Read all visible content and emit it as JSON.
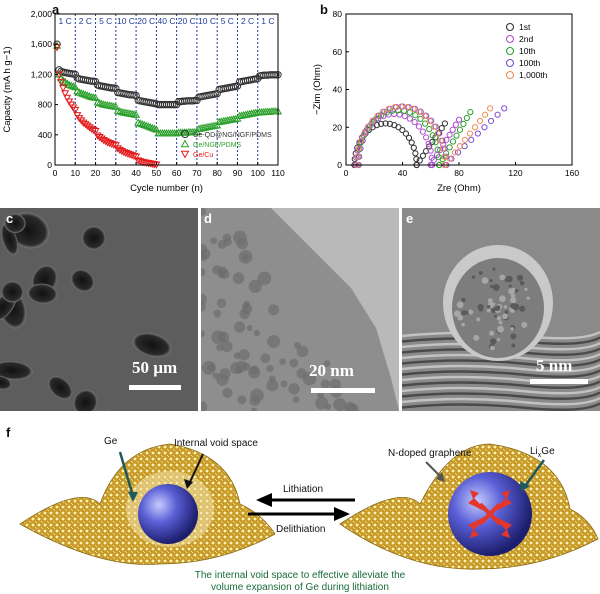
{
  "panels": {
    "a": "a",
    "b": "b",
    "c": "c",
    "d": "d",
    "e": "e",
    "f": "f"
  },
  "chart_data": [
    {
      "id": "a",
      "type": "scatter",
      "xlabel": "Cycle number (n)",
      "ylabel": "Capacity (mA h g−1)",
      "xlim": [
        0,
        110
      ],
      "ylim": [
        0,
        2000
      ],
      "xticks": [
        "0",
        "10",
        "20",
        "30",
        "40",
        "50",
        "60",
        "70",
        "80",
        "90",
        "100",
        "110"
      ],
      "yticks": [
        "0",
        "400",
        "800",
        "1,200",
        "1,600",
        "2,000"
      ],
      "rate_labels": [
        "1 C",
        "2 C",
        "5 C",
        "10 C",
        "20 C",
        "40 C",
        "20 C",
        "10 C",
        "5 C",
        "2 C",
        "1 C"
      ],
      "rate_boundaries": [
        10,
        20,
        30,
        40,
        50,
        60,
        70,
        80,
        90,
        100
      ],
      "legend_position": "right-middle",
      "series": [
        {
          "name": "Ge-QD@NG/NGF/PDMS",
          "color": "#333333",
          "marker": "circle",
          "x": [
            1,
            2,
            3,
            4,
            5,
            6,
            7,
            8,
            9,
            10,
            11,
            12,
            13,
            14,
            15,
            16,
            17,
            18,
            19,
            20,
            21,
            22,
            23,
            24,
            25,
            26,
            27,
            28,
            29,
            30,
            31,
            32,
            33,
            34,
            35,
            36,
            37,
            38,
            39,
            40,
            41,
            42,
            43,
            44,
            45,
            46,
            47,
            48,
            49,
            50,
            51,
            52,
            53,
            54,
            55,
            56,
            57,
            58,
            59,
            60,
            61,
            62,
            63,
            64,
            65,
            66,
            67,
            68,
            69,
            70,
            71,
            72,
            73,
            74,
            75,
            76,
            77,
            78,
            79,
            80,
            81,
            82,
            83,
            84,
            85,
            86,
            87,
            88,
            89,
            90,
            91,
            92,
            93,
            94,
            95,
            96,
            97,
            98,
            99,
            100,
            101,
            102,
            103,
            104,
            105,
            106,
            107,
            108,
            109,
            110
          ],
          "y": [
            1600,
            1260,
            1240,
            1230,
            1225,
            1220,
            1215,
            1210,
            1205,
            1200,
            1150,
            1140,
            1135,
            1130,
            1125,
            1120,
            1115,
            1110,
            1110,
            1105,
            1060,
            1050,
            1045,
            1040,
            1035,
            1030,
            1025,
            1020,
            1020,
            1015,
            960,
            955,
            950,
            945,
            940,
            935,
            930,
            930,
            925,
            920,
            860,
            850,
            845,
            840,
            835,
            830,
            825,
            820,
            815,
            810,
            800,
            800,
            800,
            800,
            800,
            800,
            800,
            800,
            800,
            800,
            840,
            840,
            845,
            845,
            850,
            850,
            850,
            850,
            855,
            855,
            900,
            905,
            910,
            915,
            920,
            925,
            930,
            935,
            940,
            945,
            1000,
            1005,
            1010,
            1015,
            1020,
            1025,
            1030,
            1035,
            1040,
            1045,
            1100,
            1105,
            1110,
            1115,
            1120,
            1125,
            1130,
            1135,
            1140,
            1145,
            1180,
            1185,
            1190,
            1190,
            1190,
            1195,
            1195,
            1195,
            1195,
            1195
          ]
        },
        {
          "name": "Ge/NGF/PDMS",
          "color": "#2ca02c",
          "marker": "triangle-up",
          "x": [
            1,
            2,
            3,
            4,
            5,
            6,
            7,
            8,
            9,
            10,
            11,
            12,
            13,
            14,
            15,
            16,
            17,
            18,
            19,
            20,
            21,
            22,
            23,
            24,
            25,
            26,
            27,
            28,
            29,
            30,
            31,
            32,
            33,
            34,
            35,
            36,
            37,
            38,
            39,
            40,
            41,
            42,
            43,
            44,
            45,
            46,
            47,
            48,
            49,
            50,
            51,
            52,
            53,
            54,
            55,
            56,
            57,
            58,
            59,
            60,
            61,
            62,
            63,
            64,
            65,
            66,
            67,
            68,
            69,
            70,
            71,
            72,
            73,
            74,
            75,
            76,
            77,
            78,
            79,
            80,
            81,
            82,
            83,
            84,
            85,
            86,
            87,
            88,
            89,
            90,
            91,
            92,
            93,
            94,
            95,
            96,
            97,
            98,
            99,
            100,
            101,
            102,
            103,
            104,
            105,
            106,
            107,
            108,
            109,
            110
          ],
          "y": [
            1580,
            1200,
            1150,
            1120,
            1100,
            1080,
            1060,
            1050,
            1040,
            1030,
            980,
            960,
            950,
            940,
            930,
            920,
            910,
            900,
            895,
            890,
            830,
            820,
            810,
            800,
            795,
            790,
            785,
            780,
            775,
            770,
            720,
            710,
            700,
            695,
            690,
            685,
            680,
            675,
            670,
            665,
            560,
            550,
            540,
            530,
            520,
            510,
            500,
            490,
            480,
            470,
            420,
            420,
            420,
            420,
            420,
            420,
            420,
            420,
            420,
            420,
            430,
            430,
            430,
            430,
            430,
            435,
            435,
            435,
            435,
            440,
            480,
            485,
            490,
            495,
            500,
            505,
            510,
            515,
            520,
            525,
            570,
            575,
            580,
            585,
            590,
            595,
            600,
            605,
            610,
            615,
            650,
            655,
            660,
            665,
            670,
            675,
            680,
            685,
            690,
            695,
            700,
            700,
            700,
            705,
            705,
            705,
            710,
            710,
            710,
            710
          ]
        },
        {
          "name": "Ge/Cu",
          "color": "#e41a1c",
          "marker": "triangle-down",
          "x": [
            1,
            2,
            3,
            4,
            5,
            6,
            7,
            8,
            9,
            10,
            11,
            12,
            13,
            14,
            15,
            16,
            17,
            18,
            19,
            20,
            21,
            22,
            23,
            24,
            25,
            26,
            27,
            28,
            29,
            30,
            31,
            32,
            33,
            34,
            35,
            36,
            37,
            38,
            39,
            40,
            41,
            42,
            43,
            44,
            45,
            46,
            47,
            48,
            49,
            50
          ],
          "y": [
            1560,
            1200,
            1100,
            1020,
            950,
            890,
            840,
            800,
            760,
            730,
            660,
            620,
            590,
            560,
            540,
            520,
            500,
            480,
            465,
            450,
            390,
            370,
            350,
            330,
            315,
            300,
            290,
            280,
            270,
            260,
            220,
            200,
            185,
            170,
            160,
            150,
            140,
            130,
            120,
            110,
            60,
            50,
            40,
            35,
            30,
            25,
            20,
            15,
            10,
            5
          ]
        }
      ]
    },
    {
      "id": "b",
      "type": "scatter",
      "xlabel": "Zre (Ohm)",
      "ylabel": "−Zim (Ohm)",
      "xlim": [
        0,
        160
      ],
      "ylim": [
        0,
        80
      ],
      "xticks": [
        "0",
        "40",
        "80",
        "120",
        "160"
      ],
      "yticks": [
        "0",
        "20",
        "40",
        "60",
        "80"
      ],
      "legend_position": "top-right",
      "series": [
        {
          "name": "1st",
          "color": "#333333",
          "center": 28,
          "radius": 22,
          "tail_start": 50,
          "tail_end": 70,
          "tail_top": 22
        },
        {
          "name": "2nd",
          "color": "#b04fd1",
          "center": 34,
          "radius": 27,
          "tail_start": 60,
          "tail_end": 80,
          "tail_top": 24
        },
        {
          "name": "10th",
          "color": "#2ca02c",
          "center": 37,
          "radius": 29,
          "tail_start": 66,
          "tail_end": 88,
          "tail_top": 28
        },
        {
          "name": "100th",
          "color": "#7b4fd1",
          "center": 40,
          "radius": 31,
          "tail_start": 70,
          "tail_end": 112,
          "tail_top": 30
        },
        {
          "name": "1,000th",
          "color": "#f08c5a",
          "center": 39,
          "radius": 31,
          "tail_start": 70,
          "tail_end": 102,
          "tail_top": 30
        }
      ]
    }
  ],
  "micrographs": {
    "c_scale": "50 µm",
    "d_scale": "20 nm",
    "e_scale": "5 nm"
  },
  "schematic": {
    "ge_label": "Ge",
    "void_label": "Internal void space",
    "graphene_label": "N-doped graphene",
    "lixge_label_main": "Li",
    "lixge_label_sub": "x",
    "lixge_label_end": "Ge",
    "lithiation": "Lithiation",
    "delithiation": "Delithiation",
    "caption_line1": "The internal void space to effective alleviate the",
    "caption_line2": "volume expansion of Ge during lithiation",
    "caption_color": "#1a6b3a"
  }
}
